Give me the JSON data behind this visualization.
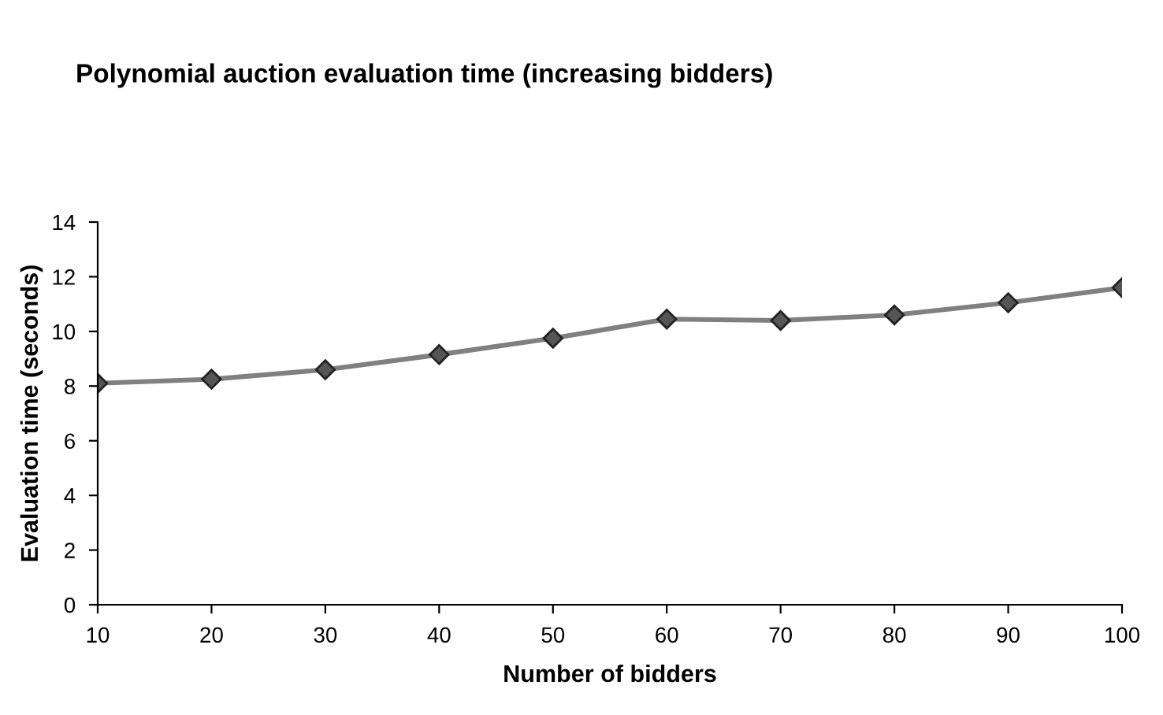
{
  "chart_data": {
    "type": "line",
    "title": "Polynomial auction evaluation time (increasing bidders)",
    "xlabel": "Number of bidders",
    "ylabel": "Evaluation time (seconds)",
    "x": [
      10,
      20,
      30,
      40,
      50,
      60,
      70,
      80,
      90,
      100
    ],
    "series": [
      {
        "color": "#808080",
        "values": [
          8.1,
          8.25,
          8.6,
          9.15,
          9.75,
          10.45,
          10.4,
          10.6,
          11.05,
          11.6
        ]
      }
    ],
    "xlim": [
      10,
      100
    ],
    "xticks": [
      10,
      20,
      30,
      40,
      50,
      60,
      70,
      80,
      90,
      100
    ],
    "ylim": [
      0,
      14
    ],
    "yticks": [
      0,
      2,
      4,
      6,
      8,
      10,
      12,
      14
    ],
    "grid": false,
    "legend": false,
    "marker": "diamond",
    "line_style": "solid"
  }
}
